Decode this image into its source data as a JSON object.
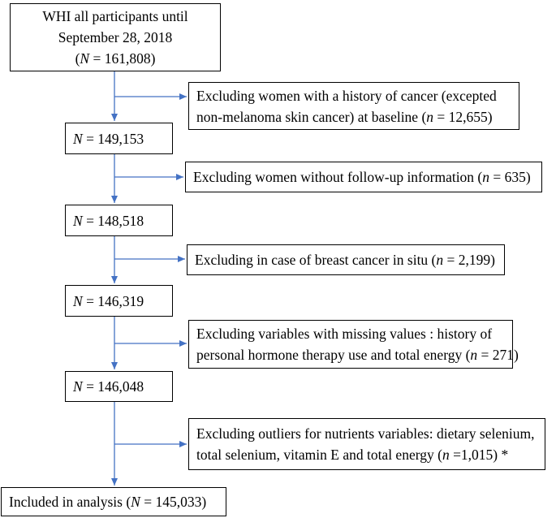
{
  "start": {
    "line1": "WHI all participants until",
    "line2": "September 28, 2018",
    "n_var": "N",
    "n_value": " = 161,808"
  },
  "counts": [
    {
      "var": "N",
      "value": " = 149,153"
    },
    {
      "var": "N",
      "value": " = 148,518"
    },
    {
      "var": "N",
      "value": " = 146,319"
    },
    {
      "var": "N",
      "value": " = 146,048"
    }
  ],
  "exclusions": [
    {
      "line1": "Excluding women with a history of cancer (excepted",
      "line2_pre": "non-melanoma skin cancer) at baseline (",
      "n_var": "n",
      "n_post": " = 12,655)"
    },
    {
      "line1_pre": "Excluding women without follow-up information (",
      "n_var": "n",
      "n_post": " = 635)"
    },
    {
      "line1_pre": "Excluding in case of breast cancer in situ (",
      "n_var": "n",
      "n_post": " = 2,199)"
    },
    {
      "line1": "Excluding variables with missing values : history of",
      "line2_pre": "personal hormone therapy use and total energy (",
      "n_var": "n",
      "n_post": " = 271)"
    },
    {
      "line1": "Excluding outliers for nutrients variables: dietary selenium,",
      "line2_pre": "total selenium, vitamin E and total energy (",
      "n_var": "n",
      "n_post": " =1,015) *"
    }
  ],
  "final": {
    "pre": "Included in analysis (",
    "n_var": "N",
    "post": " = 145,033)"
  },
  "colors": {
    "arrow": "#4472C4",
    "border": "#000000"
  }
}
